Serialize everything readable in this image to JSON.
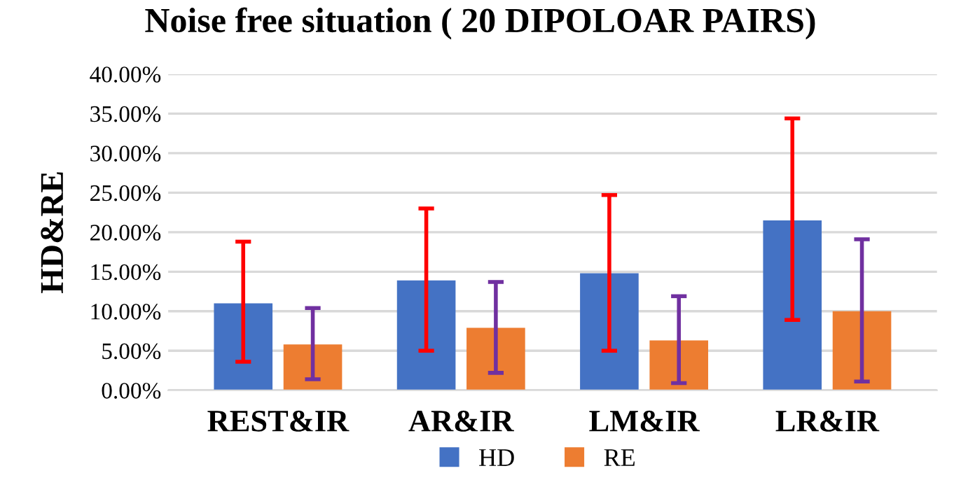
{
  "chart_data": {
    "type": "bar",
    "title": "Noise free situation ( 20 DIPOLOAR PAIRS)",
    "ylabel": "HD&RE",
    "categories": [
      "REST&IR",
      "AR&IR",
      "LM&IR",
      "LR&IR"
    ],
    "series": [
      {
        "name": "HD",
        "color": "#4472c4",
        "values": [
          11.0,
          13.9,
          14.8,
          21.5
        ],
        "errors": [
          [
            3.6,
            18.8
          ],
          [
            5.0,
            23.0
          ],
          [
            5.0,
            24.7
          ],
          [
            8.9,
            34.4
          ]
        ]
      },
      {
        "name": "RE",
        "color": "#ed7d31",
        "values": [
          5.8,
          7.9,
          6.3,
          10.0
        ],
        "errors": [
          [
            1.4,
            10.4
          ],
          [
            2.2,
            13.7
          ],
          [
            0.9,
            11.9
          ],
          [
            1.1,
            19.1
          ]
        ]
      }
    ],
    "ylim": [
      0,
      40
    ],
    "yticks": [
      {
        "value": 0,
        "label": "0.00%"
      },
      {
        "value": 5,
        "label": "5.00%"
      },
      {
        "value": 10,
        "label": "10.00%"
      },
      {
        "value": 15,
        "label": "15.00%"
      },
      {
        "value": 20,
        "label": "20.00%"
      },
      {
        "value": 25,
        "label": "25.00%"
      },
      {
        "value": 30,
        "label": "30.00%"
      },
      {
        "value": 35,
        "label": "35.00%"
      },
      {
        "value": 40,
        "label": "40.00%"
      }
    ],
    "grid": "y",
    "legend": "bottom"
  }
}
